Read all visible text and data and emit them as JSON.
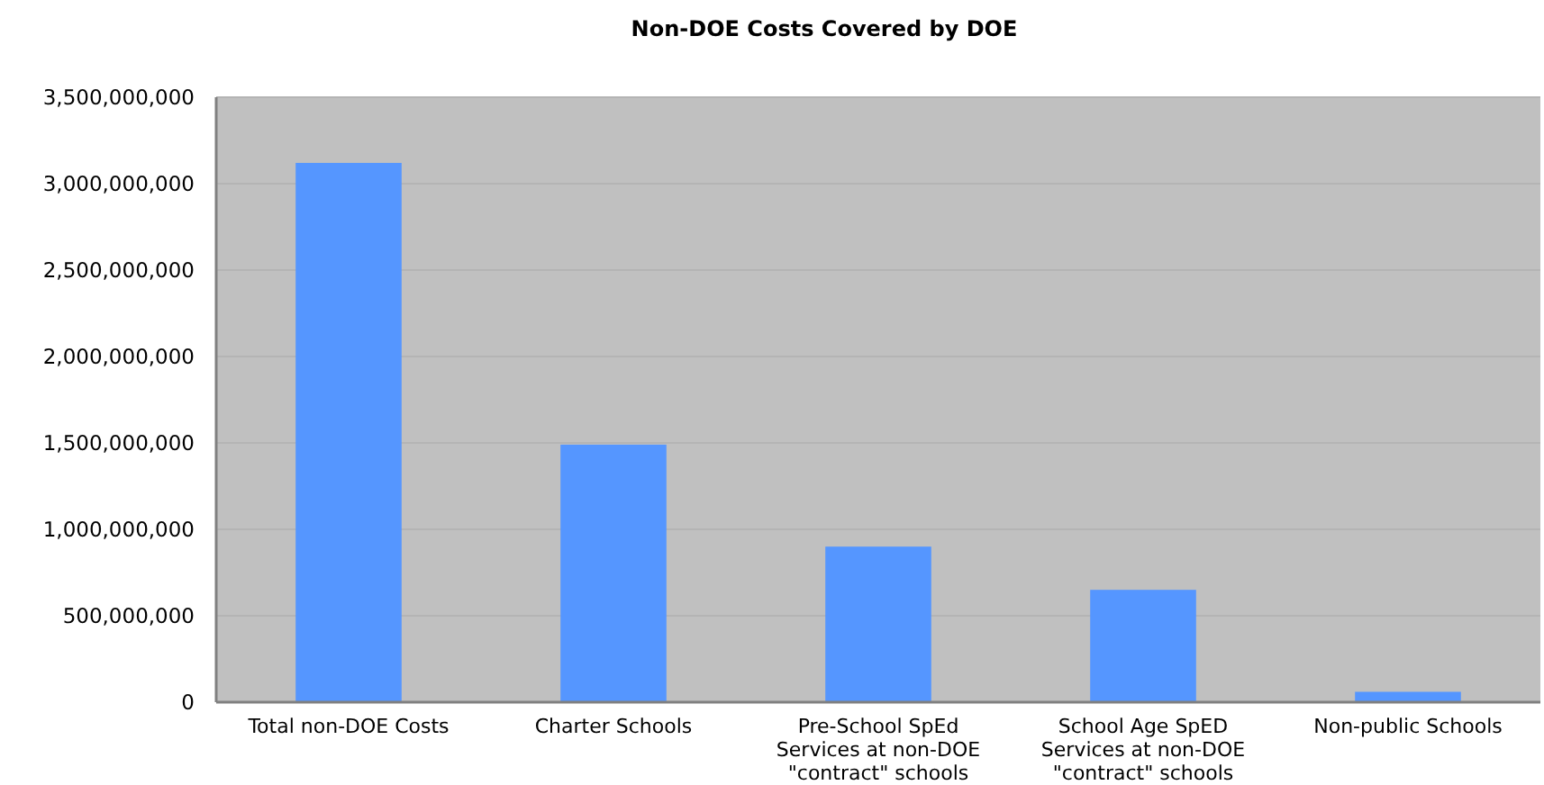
{
  "chart_data": {
    "type": "bar",
    "title": "Non-DOE Costs Covered by DOE",
    "categories": [
      "Total non-DOE Costs",
      "Charter Schools",
      "Pre-School SpEd Services at non-DOE \"contract\" schools",
      "School Age SpED Services at non-DOE \"contract\" schools",
      "Non-public Schools"
    ],
    "values": [
      3120000000,
      1490000000,
      900000000,
      650000000,
      60000000
    ],
    "color": "#5596ff",
    "ylim": [
      0,
      3500000000
    ],
    "yticks": [
      {
        "value": 0,
        "label": "0"
      },
      {
        "value": 500000000,
        "label": "500,000,000"
      },
      {
        "value": 1000000000,
        "label": "1,000,000,000"
      },
      {
        "value": 1500000000,
        "label": "1,500,000,000"
      },
      {
        "value": 2000000000,
        "label": "2,000,000,000"
      },
      {
        "value": 2500000000,
        "label": "2,500,000,000"
      },
      {
        "value": 3000000000,
        "label": "3,000,000,000"
      },
      {
        "value": 3500000000,
        "label": "3,500,000,000"
      }
    ],
    "grid": "y"
  }
}
